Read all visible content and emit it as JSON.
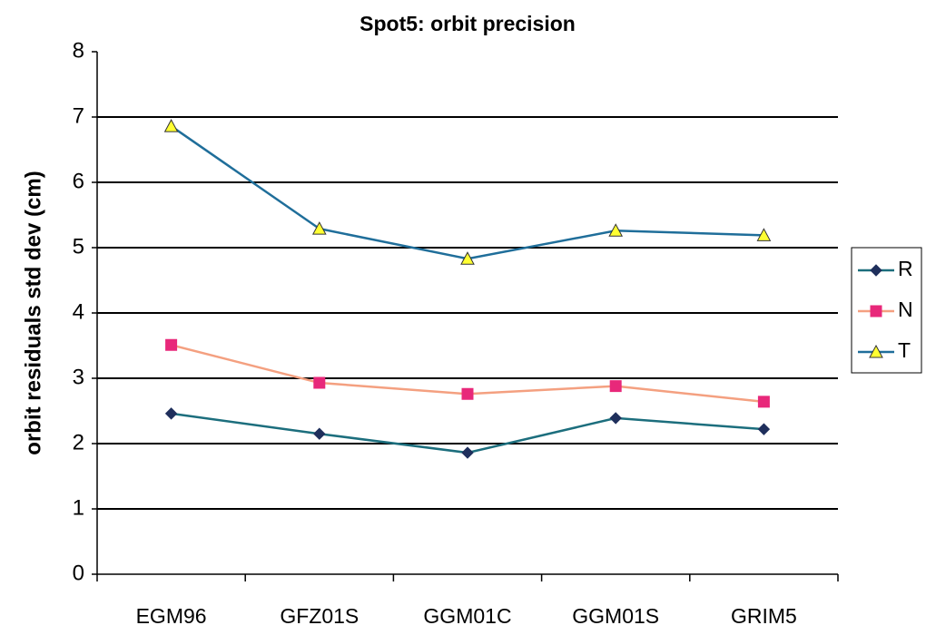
{
  "chart_data": {
    "type": "line",
    "title": "Spot5: orbit precision",
    "y_label": "orbit residuals std dev (cm)",
    "categories": [
      "EGM96",
      "GFZ01S",
      "GGM01C",
      "GGM01S",
      "GRIM5"
    ],
    "series": [
      {
        "name": "R",
        "color": "#1c6e7d",
        "marker": "diamond",
        "marker_color": "#1f2f5c",
        "values": [
          2.46,
          2.15,
          1.86,
          2.39,
          2.22
        ]
      },
      {
        "name": "N",
        "color": "#f4a080",
        "marker": "square",
        "marker_color": "#e8287a",
        "values": [
          3.51,
          2.93,
          2.76,
          2.88,
          2.64
        ]
      },
      {
        "name": "T",
        "color": "#1f6e9a",
        "marker": "triangle",
        "marker_color": "#ffff33",
        "values": [
          6.86,
          5.29,
          4.83,
          5.26,
          5.19
        ]
      }
    ],
    "ylim": [
      0,
      8
    ],
    "yticks": [
      0,
      1,
      2,
      3,
      4,
      5,
      6,
      7,
      8
    ],
    "grid": true,
    "legend": "right"
  }
}
